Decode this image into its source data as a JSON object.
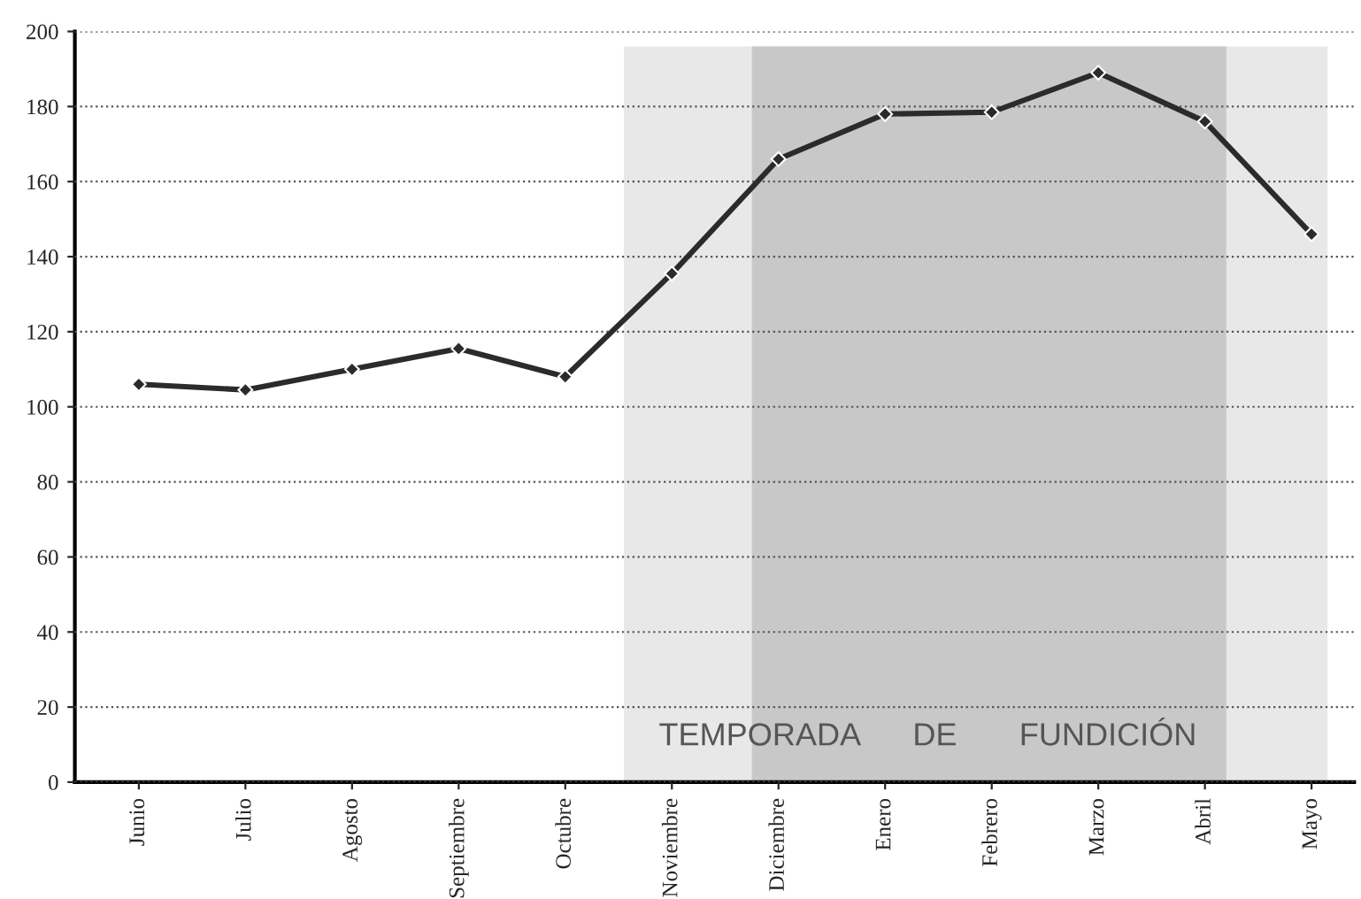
{
  "chart_data": {
    "type": "line",
    "categories": [
      "Junio",
      "Julio",
      "Agosto",
      "Septiembre",
      "Octubre",
      "Noviembre",
      "Diciembre",
      "Enero",
      "Febrero",
      "Marzo",
      "Abril",
      "Mayo"
    ],
    "series": [
      {
        "color": "#2b2b2b",
        "values": [
          106,
          104.5,
          110,
          115.5,
          108,
          135.5,
          166,
          178,
          178.5,
          189,
          176,
          146
        ]
      }
    ],
    "ylim": [
      0,
      200
    ],
    "yticks": [
      0,
      20,
      40,
      60,
      80,
      100,
      120,
      140,
      160,
      180,
      200
    ],
    "grid": "y",
    "marker": "diamond",
    "line_style": "solid",
    "legend": false,
    "annotations": [
      "TEMPORADA      DE       FUNDICIÓN"
    ]
  }
}
